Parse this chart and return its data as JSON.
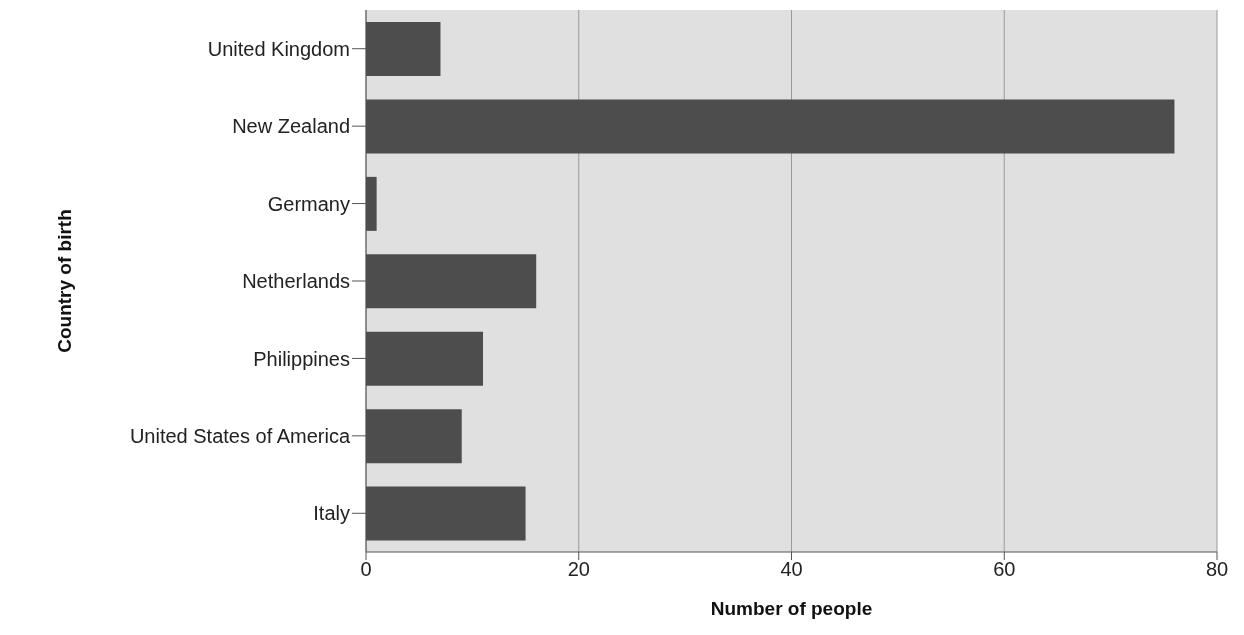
{
  "chart_data": {
    "type": "bar",
    "orientation": "horizontal",
    "xlabel": "Number of people",
    "ylabel": "Country of birth",
    "categories": [
      "United Kingdom",
      "New Zealand",
      "Germany",
      "Netherlands",
      "Philippines",
      "United States of America",
      "Italy"
    ],
    "values": [
      7,
      76,
      1,
      16,
      11,
      9,
      15
    ],
    "color": "#4d4d4d",
    "xlim": [
      0,
      80
    ],
    "xticks": [
      0,
      20,
      40,
      60,
      80
    ],
    "grid": "x"
  }
}
